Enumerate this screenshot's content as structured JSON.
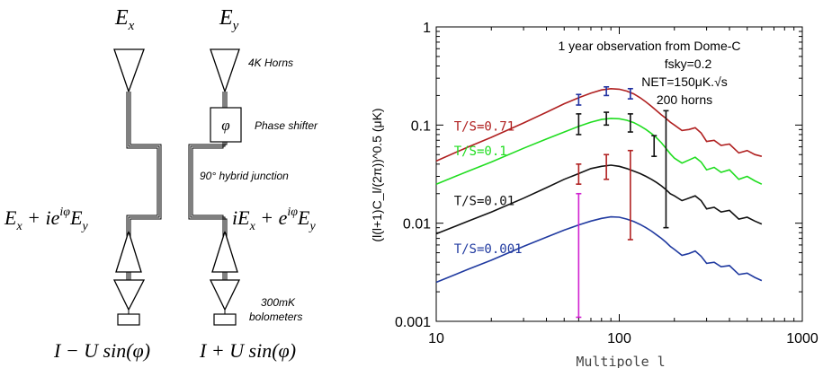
{
  "diagram": {
    "ex_label": "E_x",
    "ey_label": "E_y",
    "horns_label": "4K Horns",
    "phase_shifter_symbol": "φ",
    "phase_shifter_label": "Phase shifter",
    "hybrid_label": "90° hybrid junction",
    "left_output_eq": "E_x + ie^{iφ} E_y",
    "right_output_eq": "iE_x + e^{iφ} E_y",
    "bolometer_label_line1": "300mK",
    "bolometer_label_line2": "bolometers",
    "left_result": "I − U sin(φ)",
    "right_result": "I + U sin(φ)"
  },
  "chart_data": {
    "type": "line",
    "xscale": "log",
    "yscale": "log",
    "xlim": [
      10,
      1000
    ],
    "ylim": [
      0.001,
      1
    ],
    "xlabel": "Multipole l",
    "ylabel": "(l(l+1)C_l/(2π))^0.5 (μK)",
    "x_ticks": [
      "10",
      "100",
      "1000"
    ],
    "y_ticks": [
      "0.001",
      "0.01",
      "0.1",
      "1"
    ],
    "annotation": [
      "1 year observation from Dome-C",
      "fsky=0.2",
      "NET=150μK.√s",
      "200 horns"
    ],
    "series": [
      {
        "name": "T/S=0.71",
        "color": "#b02020",
        "x": [
          10,
          15,
          20,
          30,
          40,
          50,
          60,
          70,
          80,
          90,
          100,
          110,
          120,
          130,
          140,
          150,
          160,
          170,
          180,
          190,
          200,
          220,
          240,
          260,
          280,
          300,
          330,
          360,
          400,
          450,
          500,
          550,
          600
        ],
        "y": [
          0.043,
          0.06,
          0.075,
          0.105,
          0.135,
          0.165,
          0.19,
          0.212,
          0.228,
          0.235,
          0.232,
          0.222,
          0.208,
          0.19,
          0.172,
          0.155,
          0.14,
          0.127,
          0.117,
          0.107,
          0.1,
          0.088,
          0.09,
          0.094,
          0.083,
          0.068,
          0.07,
          0.062,
          0.064,
          0.052,
          0.055,
          0.05,
          0.048
        ]
      },
      {
        "name": "T/S=0.1",
        "color": "#20dd20",
        "x": [
          10,
          15,
          20,
          30,
          40,
          50,
          60,
          70,
          80,
          90,
          100,
          110,
          120,
          130,
          140,
          150,
          160,
          170,
          180,
          190,
          200,
          220,
          240,
          260,
          280,
          300,
          330,
          360,
          400,
          450,
          500,
          550,
          600
        ],
        "y": [
          0.025,
          0.034,
          0.042,
          0.058,
          0.072,
          0.085,
          0.097,
          0.107,
          0.114,
          0.117,
          0.116,
          0.112,
          0.106,
          0.098,
          0.09,
          0.082,
          0.074,
          0.066,
          0.058,
          0.051,
          0.046,
          0.041,
          0.044,
          0.047,
          0.042,
          0.035,
          0.037,
          0.033,
          0.035,
          0.028,
          0.03,
          0.027,
          0.025
        ]
      },
      {
        "name": "T/S=0.01",
        "color": "#111111",
        "x": [
          10,
          15,
          20,
          30,
          40,
          50,
          60,
          70,
          80,
          90,
          100,
          110,
          120,
          130,
          140,
          150,
          160,
          170,
          180,
          190,
          200,
          220,
          240,
          260,
          280,
          300,
          330,
          360,
          400,
          450,
          500,
          550,
          600
        ],
        "y": [
          0.0078,
          0.0105,
          0.013,
          0.018,
          0.023,
          0.028,
          0.032,
          0.036,
          0.038,
          0.039,
          0.038,
          0.036,
          0.034,
          0.032,
          0.03,
          0.028,
          0.026,
          0.024,
          0.022,
          0.02,
          0.019,
          0.017,
          0.018,
          0.019,
          0.017,
          0.014,
          0.0145,
          0.013,
          0.0135,
          0.011,
          0.0115,
          0.0105,
          0.0098
        ]
      },
      {
        "name": "T/S=0.001",
        "color": "#203aa0",
        "x": [
          10,
          15,
          20,
          30,
          40,
          50,
          60,
          70,
          80,
          90,
          100,
          110,
          120,
          130,
          140,
          150,
          160,
          170,
          180,
          190,
          200,
          220,
          240,
          260,
          280,
          300,
          330,
          360,
          400,
          450,
          500,
          550,
          600
        ],
        "y": [
          0.0025,
          0.0034,
          0.0042,
          0.0058,
          0.0072,
          0.0085,
          0.0096,
          0.0105,
          0.0112,
          0.0116,
          0.0115,
          0.011,
          0.0104,
          0.0097,
          0.009,
          0.0083,
          0.0076,
          0.007,
          0.0064,
          0.0058,
          0.0054,
          0.0047,
          0.0049,
          0.0052,
          0.0046,
          0.0039,
          0.004,
          0.0036,
          0.0037,
          0.003,
          0.0031,
          0.0028,
          0.0026
        ]
      }
    ],
    "error_bars": [
      {
        "x": 60,
        "lo": 0.16,
        "hi": 0.205,
        "color": "#2030a0"
      },
      {
        "x": 85,
        "lo": 0.2,
        "hi": 0.245,
        "color": "#2030a0"
      },
      {
        "x": 115,
        "lo": 0.185,
        "hi": 0.235,
        "color": "#2030a0"
      },
      {
        "x": 60,
        "lo": 0.08,
        "hi": 0.13,
        "color": "#111111"
      },
      {
        "x": 85,
        "lo": 0.1,
        "hi": 0.135,
        "color": "#111111"
      },
      {
        "x": 115,
        "lo": 0.085,
        "hi": 0.13,
        "color": "#111111"
      },
      {
        "x": 155,
        "lo": 0.048,
        "hi": 0.078,
        "color": "#111111"
      },
      {
        "x": 60,
        "lo": 0.025,
        "hi": 0.04,
        "color": "#b02020"
      },
      {
        "x": 85,
        "lo": 0.028,
        "hi": 0.05,
        "color": "#b02020"
      },
      {
        "x": 115,
        "lo": 0.0068,
        "hi": 0.055,
        "color": "#b02020"
      },
      {
        "x": 180,
        "lo": 0.009,
        "hi": 0.14,
        "color": "#111111"
      },
      {
        "x": 60,
        "lo": 0.0011,
        "hi": 0.02,
        "color": "#d020d0"
      }
    ]
  }
}
